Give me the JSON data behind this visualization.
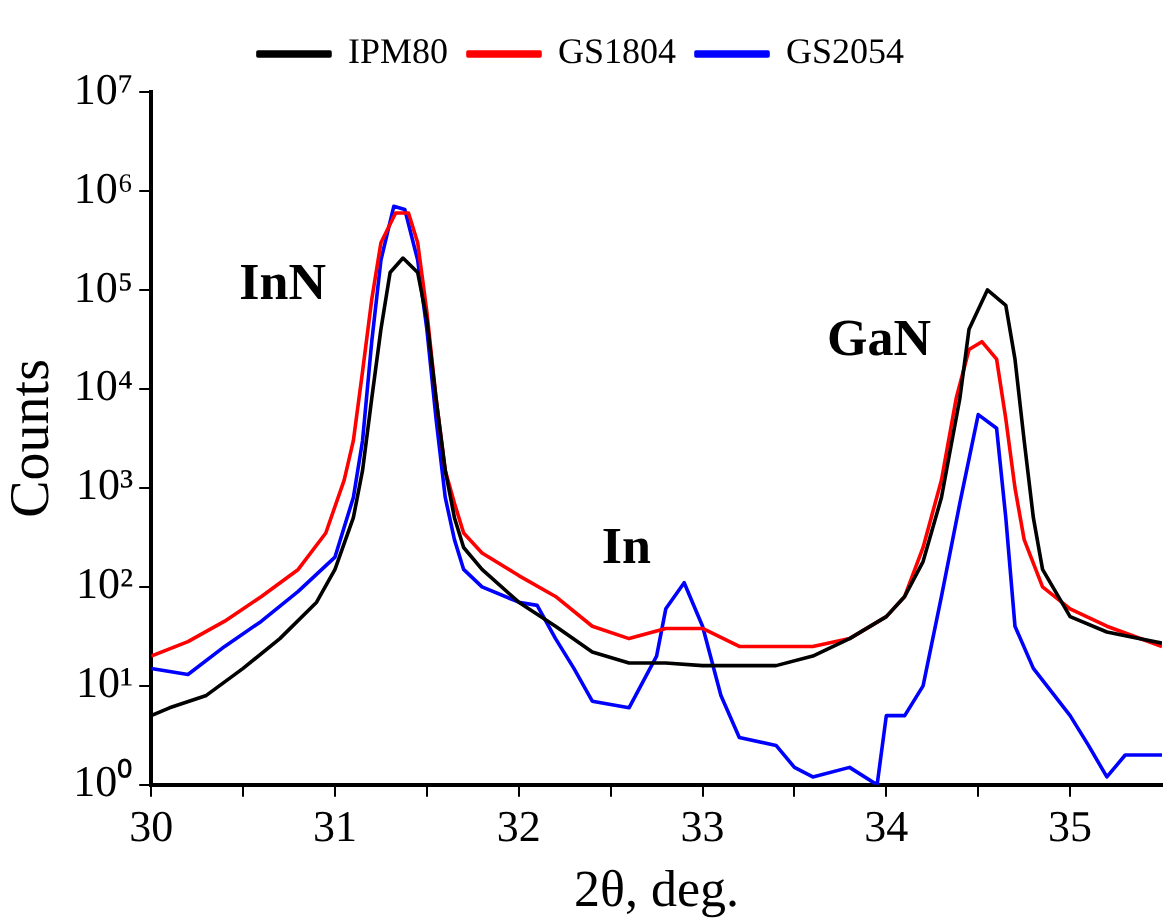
{
  "chart_data": {
    "type": "line",
    "xlabel": "2θ, deg.",
    "ylabel": "Counts",
    "log": "y",
    "grid": false,
    "legend": "top",
    "marker": "none",
    "line_style": "solid",
    "xlim": [
      30,
      35.5
    ],
    "xticks": [
      30,
      {
        "value": 30.5,
        "label": null
      },
      31,
      {
        "value": 31.5,
        "label": null
      },
      32,
      {
        "value": 32.5,
        "label": null
      },
      33,
      {
        "value": 33.5,
        "label": null
      },
      34,
      {
        "value": 34.5,
        "label": null
      },
      35
    ],
    "ylim": [
      1,
      10000000
    ],
    "yticks": [
      {
        "value": 1,
        "label": "10⁰"
      },
      {
        "value": 10,
        "label": "10¹"
      },
      {
        "value": 100,
        "label": "10²"
      },
      {
        "value": 1000,
        "label": "10³"
      },
      {
        "value": 10000,
        "label": "10⁴"
      },
      {
        "value": 100000,
        "label": "10⁵"
      },
      {
        "value": 1000000,
        "label": "10⁶"
      },
      {
        "value": 10000000,
        "label": "10⁷"
      }
    ],
    "annotations": [
      "InN",
      "In",
      "GaN"
    ],
    "series": [
      {
        "name": "IPM80",
        "color": "#000000",
        "x": [
          30.0,
          30.1,
          30.3,
          30.5,
          30.7,
          30.9,
          31.0,
          31.1,
          31.15,
          31.2,
          31.25,
          31.3,
          31.37,
          31.45,
          31.5,
          31.55,
          31.6,
          31.65,
          31.7,
          31.8,
          32.0,
          32.2,
          32.4,
          32.6,
          32.8,
          33.0,
          33.2,
          33.4,
          33.6,
          33.8,
          34.0,
          34.1,
          34.2,
          34.3,
          34.4,
          34.45,
          34.55,
          34.65,
          34.7,
          34.75,
          34.8,
          34.85,
          35.0,
          35.2,
          35.5
        ],
        "values": [
          5,
          6,
          8,
          15,
          30,
          70,
          150,
          500,
          1500,
          8000,
          40000,
          150000,
          210000,
          150000,
          50000,
          8000,
          1500,
          500,
          250,
          150,
          70,
          40,
          22,
          17,
          17,
          16,
          16,
          16,
          20,
          30,
          50,
          80,
          180,
          800,
          8000,
          40000,
          100000,
          70000,
          20000,
          3000,
          500,
          150,
          50,
          35,
          27
        ]
      },
      {
        "name": "GS1804",
        "color": "#ff0000",
        "x": [
          30.0,
          30.2,
          30.4,
          30.6,
          30.8,
          30.95,
          31.05,
          31.1,
          31.15,
          31.2,
          31.25,
          31.33,
          31.4,
          31.45,
          31.5,
          31.55,
          31.6,
          31.65,
          31.7,
          31.8,
          32.0,
          32.2,
          32.4,
          32.6,
          32.8,
          33.0,
          33.2,
          33.4,
          33.6,
          33.8,
          34.0,
          34.1,
          34.2,
          34.3,
          34.38,
          34.45,
          34.52,
          34.6,
          34.65,
          34.7,
          34.75,
          34.85,
          35.0,
          35.2,
          35.5
        ],
        "values": [
          20,
          28,
          45,
          80,
          150,
          350,
          1200,
          3000,
          15000,
          80000,
          300000,
          600000,
          600000,
          300000,
          60000,
          8000,
          1500,
          700,
          350,
          220,
          130,
          80,
          40,
          30,
          38,
          38,
          25,
          25,
          25,
          30,
          50,
          80,
          250,
          1200,
          8000,
          25000,
          30000,
          20000,
          5000,
          1000,
          300,
          100,
          60,
          40,
          25
        ]
      },
      {
        "name": "GS2054",
        "color": "#0000ff",
        "x": [
          30.0,
          30.2,
          30.4,
          30.6,
          30.8,
          31.0,
          31.1,
          31.15,
          31.2,
          31.25,
          31.32,
          31.38,
          31.45,
          31.5,
          31.55,
          31.6,
          31.65,
          31.7,
          31.8,
          32.0,
          32.1,
          32.2,
          32.3,
          32.4,
          32.6,
          32.75,
          32.8,
          32.9,
          33.0,
          33.1,
          33.2,
          33.4,
          33.5,
          33.6,
          33.8,
          33.95,
          34.0,
          34.1,
          34.2,
          34.3,
          34.4,
          34.5,
          34.6,
          34.65,
          34.7,
          34.8,
          35.0,
          35.1,
          35.2,
          35.3,
          35.5
        ],
        "values": [
          15,
          13,
          25,
          45,
          90,
          200,
          800,
          3000,
          30000,
          200000,
          700000,
          650000,
          200000,
          40000,
          5000,
          800,
          300,
          150,
          100,
          70,
          65,
          30,
          15,
          7,
          6,
          20,
          60,
          110,
          40,
          8,
          3,
          2.5,
          1.5,
          1.2,
          1.5,
          1,
          5,
          5,
          10,
          80,
          700,
          5500,
          4000,
          500,
          40,
          15,
          5,
          2.5,
          1.2,
          2,
          2
        ]
      }
    ]
  }
}
